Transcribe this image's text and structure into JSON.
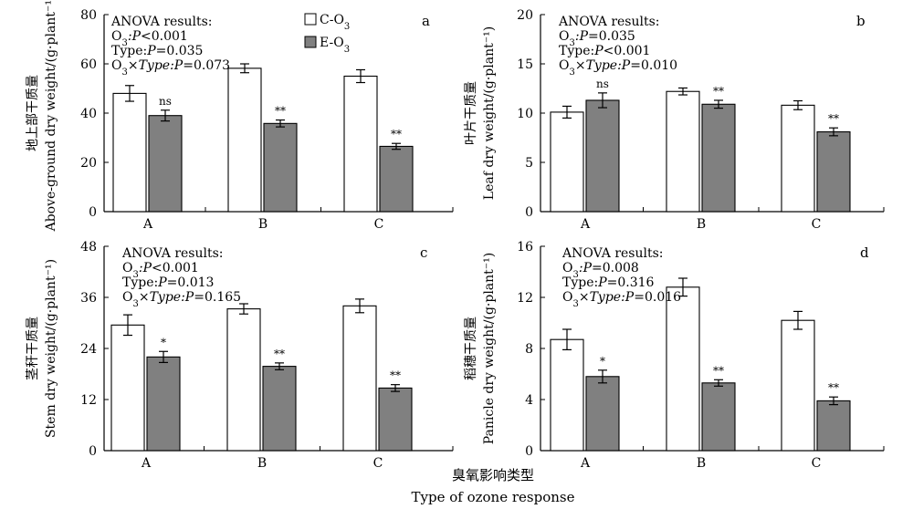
{
  "legend": {
    "c_label": "C-O",
    "e_label": "E-O",
    "sub": "3",
    "c_color": "#ffffff",
    "e_color": "#808080"
  },
  "x_axis": {
    "title_cn": "臭氧影响类型",
    "title_en": "Type of ozone response"
  },
  "chart_data": [
    {
      "type": "bar",
      "panel": "a",
      "categories": [
        "A",
        "B",
        "C"
      ],
      "ylabel_cn": "地上部干质量",
      "ylabel_en": "Above-ground dry weight/(g·plant⁻¹)",
      "ylim": [
        0,
        80
      ],
      "yticks": [
        "0",
        "20",
        "40",
        "60",
        "80"
      ],
      "series": [
        {
          "name": "C-O3",
          "values": [
            48,
            58.2,
            55
          ],
          "errors": [
            3.2,
            1.8,
            2.6
          ]
        },
        {
          "name": "E-O3",
          "values": [
            39,
            35.8,
            26.5
          ],
          "errors": [
            2.2,
            1.4,
            1.2
          ]
        }
      ],
      "significance": [
        "ns",
        "**",
        "**"
      ],
      "anova": [
        {
          "pre": "ANOVA results:",
          "sub": "",
          "italic": "",
          "post": ""
        },
        {
          "pre": "O",
          "sub": "3",
          "italic": ":P",
          "post": "<0.001"
        },
        {
          "pre": "Type:",
          "sub": "",
          "italic": "P",
          "post": "=0.035"
        },
        {
          "pre": "O",
          "sub": "3",
          "italic": "×Type:P",
          "post": "=0.073"
        }
      ]
    },
    {
      "type": "bar",
      "panel": "b",
      "categories": [
        "A",
        "B",
        "C"
      ],
      "ylabel_cn": "叶片干质量",
      "ylabel_en": "Leaf dry weight/(g·plant⁻¹)",
      "ylim": [
        0,
        20
      ],
      "yticks": [
        "0",
        "5",
        "10",
        "15",
        "20"
      ],
      "series": [
        {
          "name": "C-O3",
          "values": [
            10.1,
            12.2,
            10.8
          ],
          "errors": [
            0.6,
            0.35,
            0.45
          ]
        },
        {
          "name": "E-O3",
          "values": [
            11.3,
            10.9,
            8.1
          ],
          "errors": [
            0.75,
            0.4,
            0.4
          ]
        }
      ],
      "significance": [
        "ns",
        "**",
        "**"
      ],
      "anova": [
        {
          "pre": "ANOVA results:",
          "sub": "",
          "italic": "",
          "post": ""
        },
        {
          "pre": "O",
          "sub": "3",
          "italic": ":P",
          "post": "=0.035"
        },
        {
          "pre": "Type:",
          "sub": "",
          "italic": "P",
          "post": "<0.001"
        },
        {
          "pre": "O",
          "sub": "3",
          "italic": "×Type:P",
          "post": "=0.010"
        }
      ]
    },
    {
      "type": "bar",
      "panel": "c",
      "categories": [
        "A",
        "B",
        "C"
      ],
      "ylabel_cn": "茎秆干质量",
      "ylabel_en": "Stem dry weight/(g·plant⁻¹)",
      "ylim": [
        0,
        48
      ],
      "yticks": [
        "0",
        "12",
        "24",
        "36",
        "48"
      ],
      "series": [
        {
          "name": "C-O3",
          "values": [
            29.5,
            33.3,
            34
          ],
          "errors": [
            2.4,
            1.2,
            1.6
          ]
        },
        {
          "name": "E-O3",
          "values": [
            22,
            19.8,
            14.7
          ],
          "errors": [
            1.3,
            0.8,
            0.8
          ]
        }
      ],
      "significance": [
        "*",
        "**",
        "**"
      ],
      "anova": [
        {
          "pre": "ANOVA results:",
          "sub": "",
          "italic": "",
          "post": ""
        },
        {
          "pre": "O",
          "sub": "3",
          "italic": ":P",
          "post": "<0.001"
        },
        {
          "pre": "Type:",
          "sub": "",
          "italic": "P",
          "post": "=0.013"
        },
        {
          "pre": "O",
          "sub": "3",
          "italic": "×Type:P",
          "post": "=0.165"
        }
      ]
    },
    {
      "type": "bar",
      "panel": "d",
      "categories": [
        "A",
        "B",
        "C"
      ],
      "ylabel_cn": "稻穗干质量",
      "ylabel_en": "Panicle dry weight/(g·plant⁻¹)",
      "ylim": [
        0,
        16
      ],
      "yticks": [
        "0",
        "4",
        "8",
        "12",
        "16"
      ],
      "series": [
        {
          "name": "C-O3",
          "values": [
            8.7,
            12.8,
            10.2
          ],
          "errors": [
            0.8,
            0.7,
            0.7
          ]
        },
        {
          "name": "E-O3",
          "values": [
            5.8,
            5.3,
            3.9
          ],
          "errors": [
            0.5,
            0.25,
            0.3
          ]
        }
      ],
      "significance": [
        "*",
        "**",
        "**"
      ],
      "anova": [
        {
          "pre": "ANOVA results:",
          "sub": "",
          "italic": "",
          "post": ""
        },
        {
          "pre": "O",
          "sub": "3",
          "italic": ":P",
          "post": "=0.008"
        },
        {
          "pre": "Type:",
          "sub": "",
          "italic": "P",
          "post": "=0.316"
        },
        {
          "pre": "O",
          "sub": "3",
          "italic": "×Type:P",
          "post": "=0.016"
        }
      ]
    }
  ]
}
